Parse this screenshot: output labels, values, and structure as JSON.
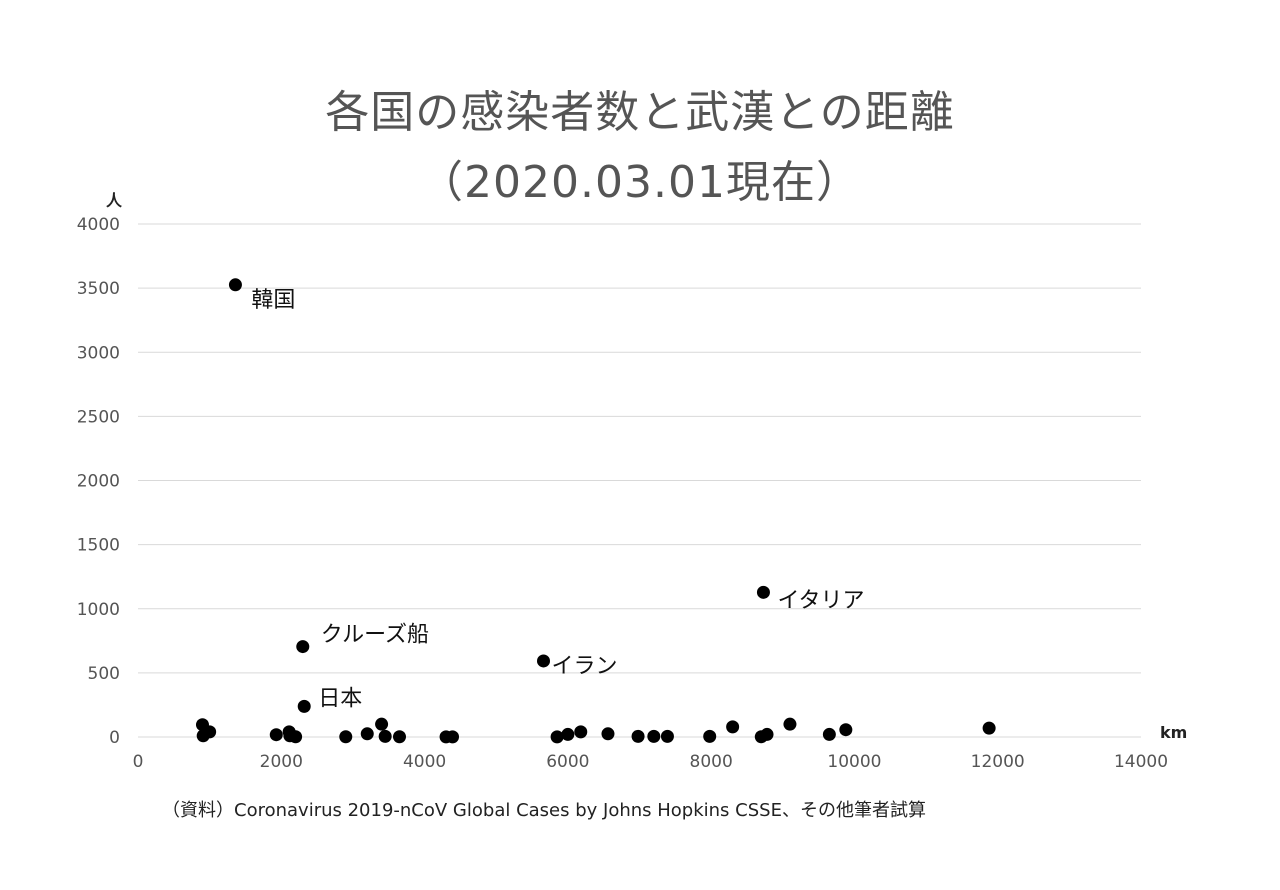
{
  "chart_data": {
    "type": "scatter",
    "title": "各国の感染者数と武漢との距離",
    "subtitle": "（2020.03.01現在）",
    "xlabel": "km",
    "ylabel": "人",
    "xlim": [
      0,
      14000
    ],
    "ylim": [
      0,
      4000
    ],
    "x_ticks": [
      "0",
      "2000",
      "4000",
      "6000",
      "8000",
      "10000",
      "12000",
      "14000"
    ],
    "y_ticks": [
      "0",
      "500",
      "1000",
      "1500",
      "2000",
      "2500",
      "3000",
      "3500",
      "4000"
    ],
    "grid": "horizontal",
    "point_color": "#000000",
    "points": [
      {
        "x": 1360,
        "y": 3526,
        "label": "韓国"
      },
      {
        "x": 2300,
        "y": 705,
        "label": "クルーズ船"
      },
      {
        "x": 2320,
        "y": 239,
        "label": "日本"
      },
      {
        "x": 5660,
        "y": 593,
        "label": "イラン"
      },
      {
        "x": 8730,
        "y": 1128,
        "label": "イタリア"
      },
      {
        "x": 900,
        "y": 96
      },
      {
        "x": 910,
        "y": 10
      },
      {
        "x": 1000,
        "y": 40
      },
      {
        "x": 1930,
        "y": 18
      },
      {
        "x": 2110,
        "y": 40
      },
      {
        "x": 2120,
        "y": 10
      },
      {
        "x": 2200,
        "y": 2
      },
      {
        "x": 2900,
        "y": 2
      },
      {
        "x": 3200,
        "y": 25
      },
      {
        "x": 3400,
        "y": 100
      },
      {
        "x": 3450,
        "y": 5
      },
      {
        "x": 3650,
        "y": 2
      },
      {
        "x": 4300,
        "y": 1
      },
      {
        "x": 4390,
        "y": 1
      },
      {
        "x": 5850,
        "y": 1
      },
      {
        "x": 6000,
        "y": 20
      },
      {
        "x": 6180,
        "y": 40
      },
      {
        "x": 6560,
        "y": 25
      },
      {
        "x": 6980,
        "y": 5
      },
      {
        "x": 7200,
        "y": 5
      },
      {
        "x": 7390,
        "y": 5
      },
      {
        "x": 7980,
        "y": 5
      },
      {
        "x": 8300,
        "y": 79
      },
      {
        "x": 8700,
        "y": 2
      },
      {
        "x": 8780,
        "y": 20
      },
      {
        "x": 9100,
        "y": 100
      },
      {
        "x": 9650,
        "y": 20
      },
      {
        "x": 9880,
        "y": 57
      },
      {
        "x": 11880,
        "y": 69
      }
    ]
  },
  "source_note": "（資料）Coronavirus 2019-nCoV Global Cases by Johns Hopkins CSSE、その他筆者試算"
}
